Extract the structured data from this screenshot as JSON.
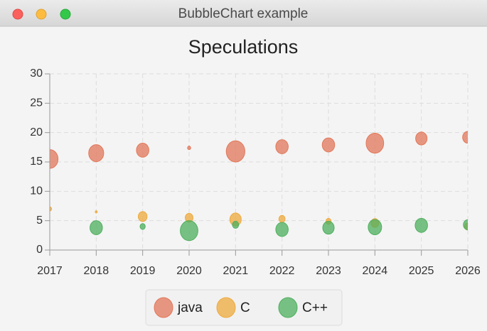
{
  "window_title": "BubbleChart example",
  "chart_data": {
    "type": "bubble",
    "title": "Speculations",
    "x": [
      2017,
      2018,
      2019,
      2020,
      2021,
      2022,
      2023,
      2024,
      2025,
      2026
    ],
    "xlim": [
      2017,
      2026
    ],
    "xticks": [
      2017,
      2018,
      2019,
      2020,
      2021,
      2022,
      2023,
      2024,
      2025,
      2026
    ],
    "ylim": [
      0,
      30
    ],
    "yticks": [
      0,
      5,
      10,
      15,
      20,
      25,
      30
    ],
    "grid": true,
    "legend": "bottom",
    "series": [
      {
        "name": "java",
        "color": "#e2775a",
        "values": [
          15.5,
          16.5,
          17,
          17.4,
          16.8,
          17.6,
          17.9,
          18.2,
          19,
          19.2
        ],
        "sizes": [
          1.6,
          1.45,
          1.2,
          0.3,
          1.8,
          1.2,
          1.2,
          1.7,
          1.1,
          1.0
        ]
      },
      {
        "name": "C",
        "color": "#eeaa3c",
        "values": [
          7,
          6.5,
          5.7,
          5.5,
          5.2,
          5.3,
          4.9,
          4.6,
          null,
          4.0
        ],
        "sizes": [
          0.35,
          0.2,
          0.85,
          0.75,
          1.1,
          0.6,
          0.5,
          0.75,
          null,
          0.6
        ]
      },
      {
        "name": "C++",
        "color": "#4eaf5e",
        "values": [
          null,
          3.8,
          4.0,
          3.3,
          4.3,
          3.5,
          3.8,
          3.9,
          4.2,
          4.3
        ],
        "sizes": [
          null,
          1.2,
          0.5,
          1.7,
          0.6,
          1.2,
          1.1,
          1.3,
          1.2,
          0.85
        ]
      }
    ]
  }
}
